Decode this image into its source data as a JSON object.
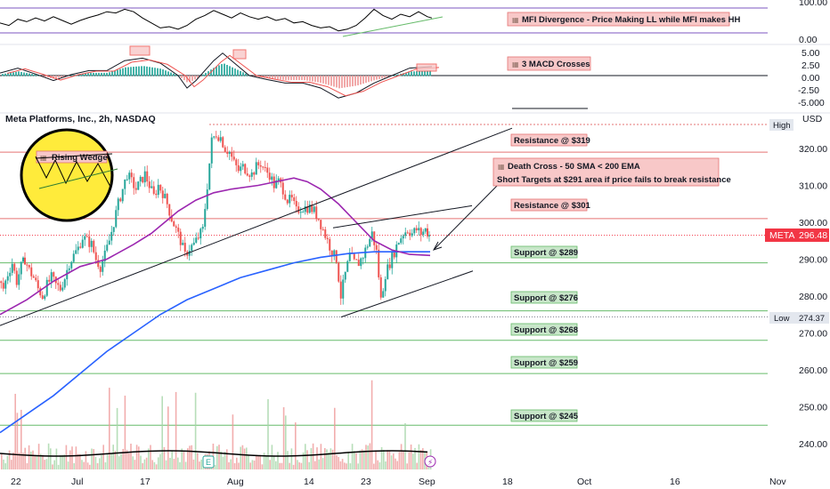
{
  "header": {
    "title": "Meta Platforms, Inc., 2h, NASDAQ",
    "currency": "USD"
  },
  "price_tag": {
    "symbol": "META",
    "price": "296.48"
  },
  "high_tag": {
    "label": "High",
    "price": ""
  },
  "low_tag": {
    "label": "Low",
    "price": "274.37"
  },
  "mfi_pane": {
    "ticks": [
      "100.00",
      "0.00"
    ],
    "annotation": "MFI Divergence - Price Making LL while MFI makes HH"
  },
  "macd_pane": {
    "ticks": [
      "5.00",
      "2.50",
      "0.00",
      "-2.50",
      "-5.000"
    ],
    "annotation": "3 MACD Crosses"
  },
  "wedge_badge": {
    "label": "Rising Wedge"
  },
  "labels": {
    "resistances": [
      "Resistance @ $319",
      "Resistance @ $301"
    ],
    "supports": [
      "Support @ $289",
      "Support @ $276",
      "Support @ $268",
      "Support @ $259",
      "Support @ $245"
    ],
    "death_cross_title": "Death Cross - 50 SMA < 200 EMA",
    "death_cross_note": "Short Targets at $291 area if price fails to break resistance"
  },
  "colors": {
    "up": "#26a69a",
    "down": "#ef5350",
    "sma50": "#9c27b0",
    "ema200": "#2962ff",
    "resistance": "#e57373",
    "support": "#66bb6a",
    "mfi": "#000000",
    "mfi_band": "#7e57c2",
    "price_tag": "#f23645",
    "label_bg_red": "#f8c8c8",
    "label_bg_green": "#c8e6c9",
    "wedge_fill": "#ffeb3b"
  },
  "chart_data": {
    "type": "candlestick",
    "title": "Meta Platforms, Inc., 2h, NASDAQ",
    "y_axis_ticks": [
      240,
      250,
      260,
      270,
      280,
      290,
      300,
      310,
      320
    ],
    "x_axis_ticks": [
      "22",
      "Jul",
      "17",
      "Aug",
      "14",
      "23",
      "Sep",
      "18",
      "Oct",
      "16",
      "Nov"
    ],
    "last_price": 296.48,
    "low_marker": 274.37,
    "resistance_levels": [
      319,
      301
    ],
    "support_levels": [
      289,
      276,
      268,
      259,
      245
    ],
    "price_path": [
      [
        0,
        284
      ],
      [
        5,
        282
      ],
      [
        10,
        286
      ],
      [
        15,
        289
      ],
      [
        20,
        284
      ],
      [
        25,
        288
      ],
      [
        29,
        290
      ],
      [
        34,
        287
      ],
      [
        39,
        285
      ],
      [
        44,
        282
      ],
      [
        49,
        280
      ],
      [
        54,
        283
      ],
      [
        59,
        285
      ],
      [
        64,
        283
      ],
      [
        69,
        282
      ],
      [
        74,
        285
      ],
      [
        79,
        289
      ],
      [
        84,
        291
      ],
      [
        89,
        293
      ],
      [
        94,
        296
      ],
      [
        99,
        295
      ],
      [
        104,
        294
      ],
      [
        109,
        290
      ],
      [
        114,
        288
      ],
      [
        119,
        291
      ],
      [
        124,
        295
      ],
      [
        129,
        300
      ],
      [
        134,
        305
      ],
      [
        139,
        309
      ],
      [
        144,
        313
      ],
      [
        149,
        311
      ],
      [
        154,
        309
      ],
      [
        159,
        311
      ],
      [
        164,
        313
      ],
      [
        169,
        310
      ],
      [
        174,
        307
      ],
      [
        179,
        310
      ],
      [
        184,
        308
      ],
      [
        189,
        305
      ],
      [
        194,
        301
      ],
      [
        199,
        298
      ],
      [
        204,
        295
      ],
      [
        209,
        291
      ],
      [
        214,
        293
      ],
      [
        219,
        294
      ],
      [
        224,
        296
      ],
      [
        229,
        298
      ],
      [
        234,
        310
      ],
      [
        239,
        322
      ],
      [
        244,
        324
      ],
      [
        249,
        323
      ],
      [
        254,
        320
      ],
      [
        259,
        319
      ],
      [
        264,
        316
      ],
      [
        269,
        314
      ],
      [
        274,
        315
      ],
      [
        279,
        314
      ],
      [
        284,
        313
      ],
      [
        289,
        315
      ],
      [
        294,
        316
      ],
      [
        299,
        314
      ],
      [
        304,
        313
      ],
      [
        309,
        310
      ],
      [
        314,
        311
      ],
      [
        319,
        309
      ],
      [
        324,
        306
      ],
      [
        329,
        306
      ],
      [
        334,
        303
      ],
      [
        339,
        304
      ],
      [
        344,
        304
      ],
      [
        349,
        304
      ],
      [
        354,
        303
      ],
      [
        359,
        301
      ],
      [
        364,
        298
      ],
      [
        369,
        295
      ],
      [
        374,
        292
      ],
      [
        379,
        290
      ],
      [
        384,
        280
      ],
      [
        389,
        286
      ],
      [
        394,
        291
      ],
      [
        399,
        289
      ],
      [
        404,
        289
      ],
      [
        409,
        291
      ],
      [
        414,
        294
      ],
      [
        419,
        297
      ],
      [
        424,
        292
      ],
      [
        429,
        279
      ],
      [
        434,
        286
      ],
      [
        439,
        289
      ],
      [
        444,
        292
      ],
      [
        449,
        295
      ],
      [
        454,
        297
      ],
      [
        459,
        298
      ],
      [
        464,
        297
      ],
      [
        469,
        298
      ],
      [
        474,
        297
      ],
      [
        479,
        298
      ],
      [
        483,
        296.48
      ]
    ],
    "sma50": [
      [
        0,
        275
      ],
      [
        30,
        279
      ],
      [
        60,
        284
      ],
      [
        90,
        288
      ],
      [
        120,
        290
      ],
      [
        150,
        294
      ],
      [
        170,
        297
      ],
      [
        185,
        300
      ],
      [
        200,
        303
      ],
      [
        220,
        306
      ],
      [
        240,
        308
      ],
      [
        260,
        309
      ],
      [
        290,
        310
      ],
      [
        310,
        311
      ],
      [
        330,
        312
      ],
      [
        345,
        311
      ],
      [
        360,
        309
      ],
      [
        380,
        305
      ],
      [
        400,
        300
      ],
      [
        420,
        295
      ],
      [
        440,
        292.5
      ],
      [
        460,
        291.3
      ],
      [
        483,
        291
      ]
    ],
    "ema200": [
      [
        0,
        243
      ],
      [
        30,
        248
      ],
      [
        60,
        253
      ],
      [
        90,
        259
      ],
      [
        120,
        265
      ],
      [
        150,
        270
      ],
      [
        180,
        275
      ],
      [
        210,
        279
      ],
      [
        240,
        282
      ],
      [
        270,
        285
      ],
      [
        300,
        287
      ],
      [
        330,
        289
      ],
      [
        360,
        290.5
      ],
      [
        390,
        291.5
      ],
      [
        420,
        292
      ],
      [
        450,
        292
      ],
      [
        483,
        292
      ]
    ],
    "mfi": [
      [
        0,
        40
      ],
      [
        10,
        30
      ],
      [
        20,
        55
      ],
      [
        30,
        45
      ],
      [
        40,
        60
      ],
      [
        50,
        48
      ],
      [
        60,
        65
      ],
      [
        70,
        50
      ],
      [
        80,
        35
      ],
      [
        90,
        50
      ],
      [
        100,
        62
      ],
      [
        110,
        72
      ],
      [
        120,
        85
      ],
      [
        130,
        80
      ],
      [
        140,
        95
      ],
      [
        150,
        85
      ],
      [
        160,
        60
      ],
      [
        170,
        40
      ],
      [
        180,
        20
      ],
      [
        190,
        25
      ],
      [
        200,
        15
      ],
      [
        210,
        30
      ],
      [
        220,
        55
      ],
      [
        230,
        70
      ],
      [
        240,
        90
      ],
      [
        250,
        75
      ],
      [
        260,
        60
      ],
      [
        270,
        80
      ],
      [
        280,
        65
      ],
      [
        290,
        55
      ],
      [
        300,
        65
      ],
      [
        310,
        50
      ],
      [
        320,
        58
      ],
      [
        330,
        40
      ],
      [
        340,
        45
      ],
      [
        350,
        30
      ],
      [
        360,
        20
      ],
      [
        370,
        25
      ],
      [
        380,
        8
      ],
      [
        390,
        15
      ],
      [
        400,
        30
      ],
      [
        410,
        60
      ],
      [
        420,
        95
      ],
      [
        430,
        70
      ],
      [
        440,
        55
      ],
      [
        450,
        75
      ],
      [
        460,
        65
      ],
      [
        470,
        85
      ],
      [
        480,
        65
      ],
      [
        485,
        60
      ]
    ],
    "macd": [
      [
        0,
        0.5
      ],
      [
        20,
        1.5
      ],
      [
        40,
        0.3
      ],
      [
        60,
        -1
      ],
      [
        80,
        0.2
      ],
      [
        100,
        1
      ],
      [
        120,
        1
      ],
      [
        140,
        3
      ],
      [
        160,
        3.5
      ],
      [
        180,
        2.5
      ],
      [
        200,
        0
      ],
      [
        210,
        -2.5
      ],
      [
        220,
        -1
      ],
      [
        240,
        3
      ],
      [
        250,
        4.5
      ],
      [
        260,
        3
      ],
      [
        280,
        0
      ],
      [
        300,
        -0.8
      ],
      [
        320,
        -1.5
      ],
      [
        340,
        -1.5
      ],
      [
        360,
        -2.5
      ],
      [
        380,
        -4.5
      ],
      [
        400,
        -3.5
      ],
      [
        420,
        -1.5
      ],
      [
        440,
        0
      ],
      [
        460,
        1.5
      ],
      [
        485,
        1.8
      ]
    ]
  }
}
